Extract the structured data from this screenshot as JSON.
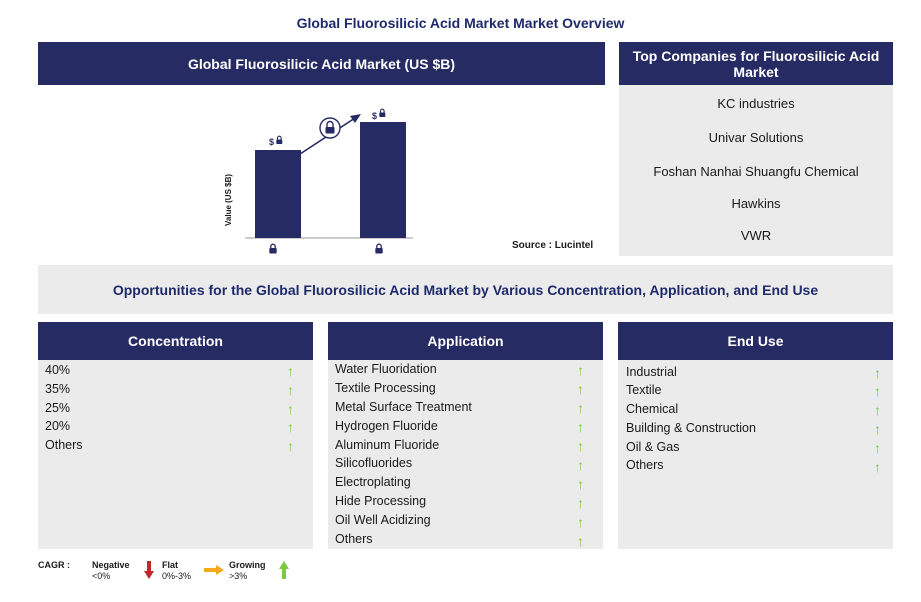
{
  "title": "Global Fluorosilicic Acid Market Market Overview",
  "market_panel": {
    "heading": "Global Fluorosilicic Acid Market (US $B)",
    "y_axis_label": "Value (US $B)",
    "bar_value_prefix": "$",
    "source": "Source : Lucintel"
  },
  "companies_panel": {
    "heading": "Top Companies for Fluorosilicic Acid Market",
    "companies": [
      "KC industries",
      "Univar Solutions",
      "Foshan Nanhai Shuangfu Chemical",
      "Hawkins",
      "VWR"
    ]
  },
  "opportunities_heading": "Opportunities for the Global Fluorosilicic Acid Market by Various Concentration, Application, and End Use",
  "columns": [
    {
      "heading": "Concentration",
      "items": [
        "40%",
        "35%",
        "25%",
        "20%",
        "Others"
      ]
    },
    {
      "heading": "Application",
      "items": [
        "Water Fluoridation",
        "Textile Processing",
        "Metal Surface Treatment",
        "Hydrogen Fluoride",
        "Aluminum Fluoride",
        "Silicofluorides",
        "Electroplating",
        "Hide Processing",
        "Oil Well Acidizing",
        "Others"
      ]
    },
    {
      "heading": "End Use",
      "items": [
        "Industrial",
        "Textile",
        "Chemical",
        "Building & Construction",
        "Oil & Gas",
        "Others"
      ]
    }
  ],
  "legend": {
    "label": "CAGR :",
    "negative_title": "Negative",
    "negative_range": "<0%",
    "flat_title": "Flat",
    "flat_range": "0%-3%",
    "growing_title": "Growing",
    "growing_range": ">3%"
  },
  "colors": {
    "navy": "#272b64",
    "panel_grey": "#ebebeb",
    "growing_green": "#7ac943",
    "negative_red": "#c1272d",
    "flat_amber": "#f7a91c"
  },
  "trend_icon": "up-arrow-icon"
}
